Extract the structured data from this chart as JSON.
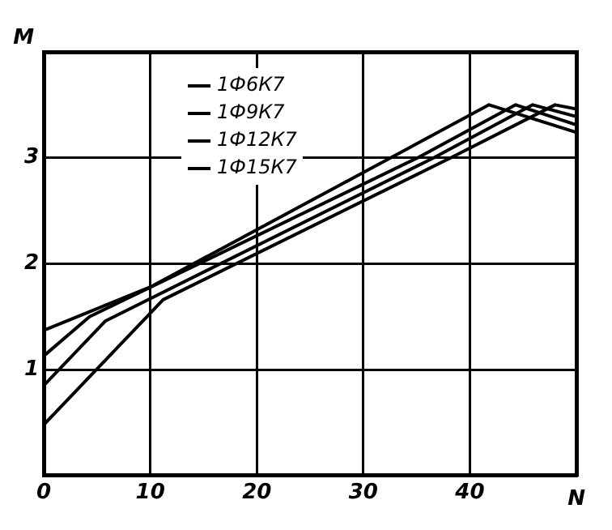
{
  "chart_data": {
    "type": "line",
    "xlabel": "N",
    "ylabel": "M",
    "xlim": [
      0,
      50
    ],
    "xticks": [
      0,
      10,
      20,
      30,
      40
    ],
    "ylim": [
      0,
      4
    ],
    "yticks": [
      1,
      2,
      3
    ],
    "grid": true,
    "legend": "top left",
    "marker": "none",
    "line_style": "solid",
    "series": [
      {
        "name": "1Ф6К7",
        "color": "#000000",
        "x": [
          0,
          10,
          41.8,
          50
        ],
        "values": [
          1.37,
          1.78,
          3.5,
          3.24
        ]
      },
      {
        "name": "1Ф9К7",
        "color": "#000000",
        "x": [
          0,
          4.3,
          35.1,
          44.3,
          50
        ],
        "values": [
          1.13,
          1.5,
          3,
          3.5,
          3.31
        ]
      },
      {
        "name": "1Ф12К7",
        "color": "#000000",
        "x": [
          0,
          5.8,
          36.6,
          45.9,
          50
        ],
        "values": [
          0.85,
          1.46,
          3,
          3.5,
          3.39
        ]
      },
      {
        "name": "1Ф15К7",
        "color": "#000000",
        "x": [
          0,
          11.2,
          38.2,
          48,
          50
        ],
        "values": [
          0.48,
          1.66,
          3,
          3.5,
          3.46
        ]
      }
    ]
  }
}
